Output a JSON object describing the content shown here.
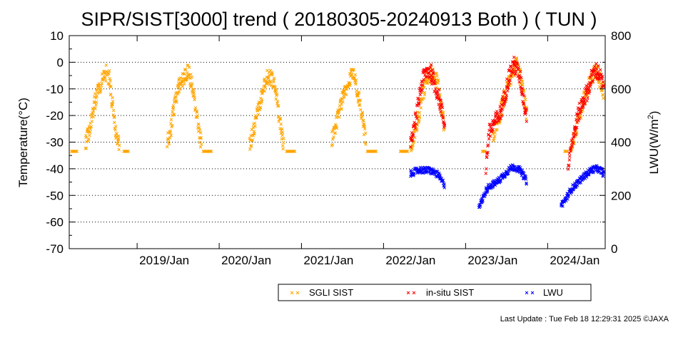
{
  "chart_data": {
    "type": "scatter",
    "title": "SIPR/SIST[3000] trend ( 20180305-20240913 Both ) ( TUN )",
    "ylabel": "Temperature(°C)",
    "y2label_prefix": "LWU(W/m",
    "y2label_exp": "2",
    "y2label_suffix": ")",
    "ylim": [
      -70,
      10
    ],
    "yticks": [
      "10",
      "0",
      "-10",
      "-20",
      "-30",
      "-40",
      "-50",
      "-60",
      "-70"
    ],
    "y2lim": [
      0,
      800
    ],
    "y2ticks": [
      "800",
      "600",
      "400",
      "200",
      "0"
    ],
    "xlim": [
      "2018-03-05",
      "2024-09-13"
    ],
    "xticks": [
      "2019/Jan",
      "2020/Jan",
      "2021/Jan",
      "2022/Jan",
      "2023/Jan",
      "2024/Jan"
    ],
    "grid": "horizontal-dotted",
    "legend_position": "bottom-right",
    "marker": "×",
    "colors": {
      "sgli": "#ffa500",
      "insitu": "#ff0000",
      "lwu": "#0000ff"
    },
    "series": [
      {
        "name": "SGLI SIST",
        "axis": "left",
        "color": "#ffa500",
        "seasons": [
          {
            "x": [
              "2018-05-15",
              "2018-06-01",
              "2018-06-15",
              "2018-07-01",
              "2018-07-15",
              "2018-08-01",
              "2018-08-15",
              "2018-09-01",
              "2018-09-15",
              "2018-10-01",
              "2018-10-15"
            ],
            "y": [
              -31,
              -26,
              -20,
              -14,
              -10,
              -7,
              -4,
              -6,
              -17,
              -27,
              -32
            ]
          },
          {
            "x": [
              "2019-05-15",
              "2019-06-01",
              "2019-06-15",
              "2019-07-01",
              "2019-07-15",
              "2019-08-01",
              "2019-08-15",
              "2019-09-01",
              "2019-09-15",
              "2019-10-01",
              "2019-10-15"
            ],
            "y": [
              -30,
              -25,
              -17,
              -11,
              -7,
              -5,
              -4,
              -7,
              -16,
              -25,
              -31
            ]
          },
          {
            "x": [
              "2020-05-15",
              "2020-06-01",
              "2020-06-15",
              "2020-07-01",
              "2020-07-15",
              "2020-08-01",
              "2020-08-15",
              "2020-09-01",
              "2020-09-15",
              "2020-10-01",
              "2020-10-15"
            ],
            "y": [
              -31,
              -27,
              -21,
              -15,
              -10,
              -6,
              -5,
              -8,
              -15,
              -24,
              -31
            ]
          },
          {
            "x": [
              "2021-05-15",
              "2021-06-01",
              "2021-06-15",
              "2021-07-01",
              "2021-07-15",
              "2021-08-01",
              "2021-08-15",
              "2021-09-01",
              "2021-09-15",
              "2021-10-01",
              "2021-10-15"
            ],
            "y": [
              -30,
              -25,
              -20,
              -14,
              -10,
              -7,
              -4,
              -8,
              -14,
              -22,
              -30
            ]
          },
          {
            "x": [
              "2022-05-01",
              "2022-05-15",
              "2022-06-01",
              "2022-06-15",
              "2022-07-01",
              "2022-07-15",
              "2022-08-01",
              "2022-08-15",
              "2022-09-01",
              "2022-09-15",
              "2022-10-01"
            ],
            "y": [
              -32,
              -28,
              -22,
              -16,
              -10,
              -6,
              -4,
              -5,
              -9,
              -16,
              -25
            ]
          },
          {
            "x": [
              "2023-05-01",
              "2023-05-15",
              "2023-06-01",
              "2023-06-15",
              "2023-07-01",
              "2023-07-15",
              "2023-08-01",
              "2023-08-15",
              "2023-09-01",
              "2023-09-15",
              "2023-10-01"
            ],
            "y": [
              -28,
              -24,
              -20,
              -16,
              -11,
              -7,
              -3,
              -1,
              -5,
              -12,
              -20
            ]
          },
          {
            "x": [
              "2024-04-15",
              "2024-05-01",
              "2024-05-15",
              "2024-06-01",
              "2024-06-15",
              "2024-07-01",
              "2024-07-15",
              "2024-08-01",
              "2024-08-15",
              "2024-09-01",
              "2024-09-13"
            ],
            "y": [
              -31,
              -27,
              -22,
              -17,
              -13,
              -9,
              -6,
              -3,
              -5,
              -9,
              -14
            ]
          }
        ],
        "winter_floor": {
          "y": -33.5,
          "x_ranges": [
            [
              "2018-03-05",
              "2018-04-10"
            ],
            [
              "2018-11-01",
              "2018-11-25"
            ],
            [
              "2019-10-20",
              "2019-11-30"
            ],
            [
              "2020-10-25",
              "2020-12-05"
            ],
            [
              "2021-10-20",
              "2021-12-01"
            ],
            [
              "2022-03-15",
              "2022-04-20"
            ],
            [
              "2023-03-15",
              "2023-03-31"
            ],
            [
              "2024-03-15",
              "2024-03-31"
            ]
          ]
        }
      },
      {
        "name": "in-situ SIST",
        "axis": "left",
        "color": "#ff0000",
        "seasons": [
          {
            "x": [
              "2022-05-01",
              "2022-05-15",
              "2022-06-01",
              "2022-06-15",
              "2022-07-01",
              "2022-07-15",
              "2022-08-01",
              "2022-08-15",
              "2022-09-01",
              "2022-09-15",
              "2022-10-01"
            ],
            "y": [
              -31,
              -26,
              -18,
              -10,
              -5,
              -3,
              -4,
              -8,
              -12,
              -17,
              -24
            ]
          },
          {
            "x": [
              "2023-04-01",
              "2023-04-15",
              "2023-05-01",
              "2023-05-15",
              "2023-06-01",
              "2023-06-15",
              "2023-07-01",
              "2023-07-15",
              "2023-08-01",
              "2023-08-15",
              "2023-09-01",
              "2023-09-15",
              "2023-10-01"
            ],
            "y": [
              -40,
              -27,
              -24,
              -22,
              -20,
              -16,
              -10,
              -5,
              -1,
              -2,
              -6,
              -13,
              -21
            ]
          },
          {
            "x": [
              "2024-04-01",
              "2024-04-15",
              "2024-05-01",
              "2024-05-15",
              "2024-06-01",
              "2024-06-15",
              "2024-07-01",
              "2024-07-15",
              "2024-08-01",
              "2024-08-15",
              "2024-09-01",
              "2024-09-13"
            ],
            "y": [
              -38,
              -31,
              -26,
              -20,
              -16,
              -13,
              -10,
              -6,
              -3,
              -4,
              -8,
              -12
            ]
          }
        ]
      },
      {
        "name": "LWU",
        "axis": "right",
        "color": "#0000ff",
        "seasons": [
          {
            "x": [
              "2022-05-01",
              "2022-05-15",
              "2022-06-01",
              "2022-06-15",
              "2022-07-01",
              "2022-07-15",
              "2022-08-01",
              "2022-08-15",
              "2022-09-01",
              "2022-09-15",
              "2022-10-01"
            ],
            "y": [
              280,
              288,
              292,
              296,
              294,
              294,
              292,
              286,
              277,
              258,
              238
            ]
          },
          {
            "x": [
              "2023-03-01",
              "2023-03-15",
              "2023-04-01",
              "2023-04-15",
              "2023-05-01",
              "2023-05-15",
              "2023-06-01",
              "2023-06-15",
              "2023-07-01",
              "2023-07-15",
              "2023-08-01",
              "2023-08-15",
              "2023-09-01",
              "2023-09-15",
              "2023-10-01"
            ],
            "y": [
              160,
              178,
              216,
              234,
              240,
              248,
              258,
              272,
              284,
              298,
              306,
              302,
              294,
              276,
              252
            ]
          },
          {
            "x": [
              "2024-03-01",
              "2024-03-15",
              "2024-04-01",
              "2024-04-15",
              "2024-05-01",
              "2024-05-15",
              "2024-06-01",
              "2024-06-15",
              "2024-07-01",
              "2024-07-15",
              "2024-08-01",
              "2024-08-15",
              "2024-09-01",
              "2024-09-13"
            ],
            "y": [
              162,
              178,
              200,
              222,
              236,
              250,
              262,
              274,
              286,
              296,
              300,
              298,
              288,
              272
            ]
          }
        ]
      }
    ],
    "legend": [
      {
        "label": "SGLI SIST",
        "color": "#ffa500"
      },
      {
        "label": "in-situ SIST",
        "color": "#ff0000"
      },
      {
        "label": "LWU",
        "color": "#0000ff"
      }
    ]
  },
  "footer": "Last Update : Tue Feb 18 12:29:31 2025  ©JAXA"
}
